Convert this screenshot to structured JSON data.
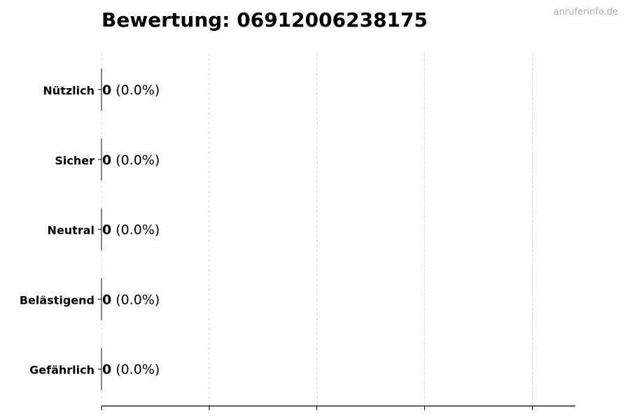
{
  "chart_data": {
    "type": "bar",
    "orientation": "horizontal",
    "title": "Bewertung: 06912006238175",
    "xlabel": "",
    "ylabel": "",
    "categories": [
      "Nützlich",
      "Sicher",
      "Neutral",
      "Belästigend",
      "Gefährlich"
    ],
    "values": [
      0,
      0,
      0,
      0,
      0
    ],
    "data_labels": [
      {
        "count": "0",
        "percent": "(0.0%)"
      },
      {
        "count": "0",
        "percent": "(0.0%)"
      },
      {
        "count": "0",
        "percent": "(0.0%)"
      },
      {
        "count": "0",
        "percent": "(0.0%)"
      },
      {
        "count": "0",
        "percent": "(0.0%)"
      }
    ],
    "xlim": [
      0,
      4.4
    ],
    "xticks": [
      0,
      1,
      2,
      3,
      4
    ],
    "xtick_labels_shown": false,
    "grid": "vertical dashed",
    "legend": "none"
  },
  "watermark": "anruferinfo.de",
  "colors": {
    "grid": "#d9d9d9",
    "axis": "#000000",
    "watermark": "#aaaaaa"
  }
}
